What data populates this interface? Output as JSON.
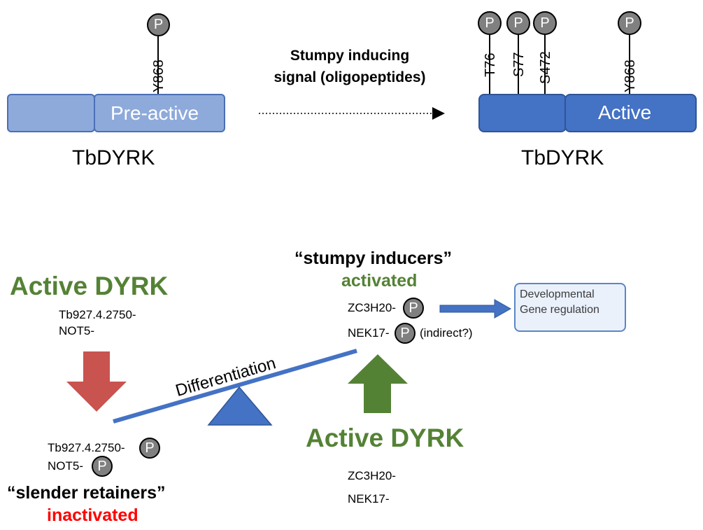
{
  "top": {
    "left_protein": {
      "domain_label": "Pre-active",
      "residue": "Y868",
      "caption": "TbDYRK"
    },
    "signal_text": [
      "Stumpy inducing",
      "signal (oligopeptides)"
    ],
    "right_protein": {
      "domain_label": "Active",
      "residues": [
        "T76",
        "S77",
        "S472",
        "Y868"
      ],
      "caption": "TbDYRK"
    },
    "phospho_symbol": "P"
  },
  "bottom": {
    "left": {
      "heading": "Active DYRK",
      "substrates": [
        "Tb927.4.2750-",
        "NOT5-"
      ],
      "phospho_substrates": [
        "Tb927.4.2750-",
        "NOT5-"
      ],
      "group_quote": "“slender retainers”",
      "status": "inactivated"
    },
    "seesaw_label": "Differentiation",
    "right": {
      "group_quote": "“stumpy inducers”",
      "status": "activated",
      "phospho_substrates": [
        "ZC3H20-",
        "NEK17-"
      ],
      "note": "(indirect?)",
      "heading": "Active DYRK",
      "substrates": [
        "ZC3H20-",
        "NEK17-"
      ]
    },
    "outcome": [
      "Developmental",
      "Gene regulation"
    ]
  },
  "colors": {
    "light_domain": "#8eaadb",
    "dark_domain": "#4472c4",
    "green": "#548235",
    "red_arrow": "#c9534f",
    "red_text": "#ff0000",
    "phospho_fill": "#808080"
  }
}
